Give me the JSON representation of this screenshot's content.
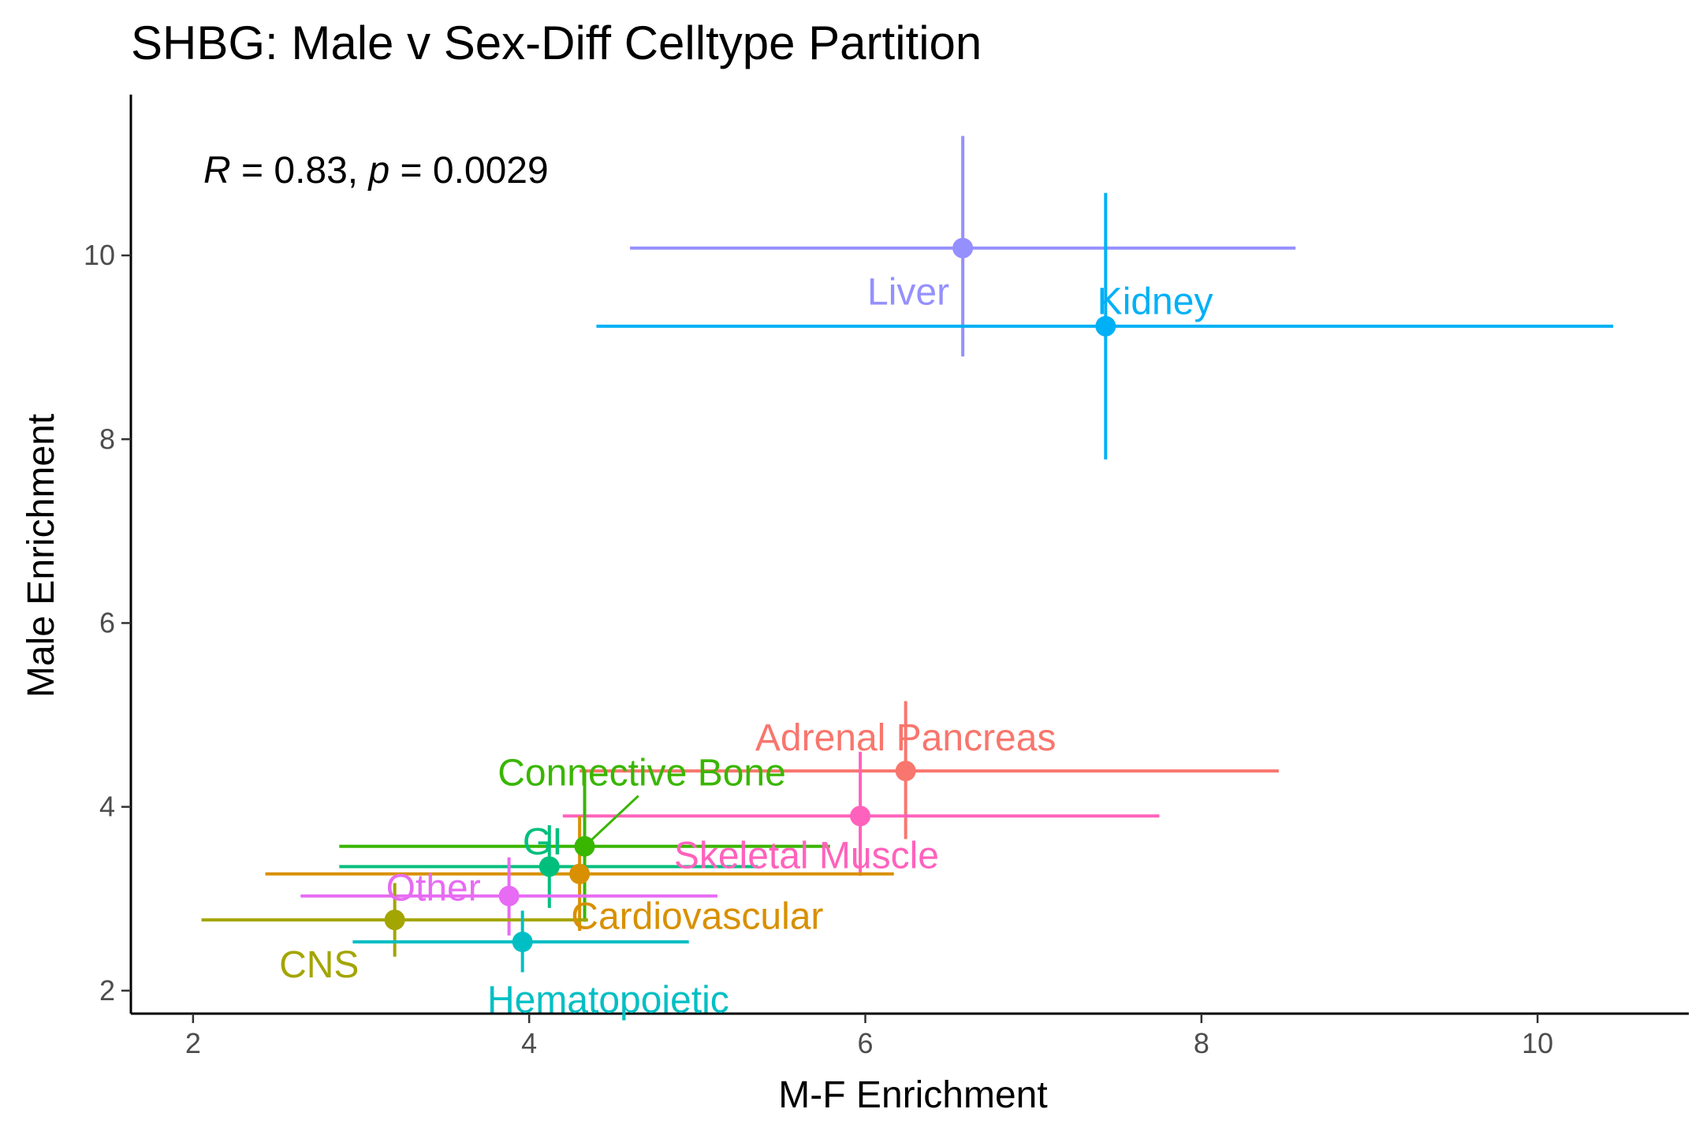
{
  "chart_data": {
    "type": "scatter",
    "title": "SHBG: Male v Sex-Diff Celltype Partition",
    "xlabel": "M-F Enrichment",
    "ylabel": "Male Enrichment",
    "xlim": [
      1.63,
      10.9
    ],
    "ylim": [
      1.75,
      11.75
    ],
    "xticks": [
      2,
      4,
      6,
      8,
      10
    ],
    "yticks": [
      2,
      4,
      6,
      8,
      10
    ],
    "grid": false,
    "legend": "none",
    "annotation": {
      "r_symbol": "R",
      "r_text": " = 0.83, ",
      "p_symbol": "p",
      "p_text": " = 0.0029"
    },
    "points": [
      {
        "label": "Liver",
        "color": "#9590FF",
        "x": 6.58,
        "y": 10.08,
        "x_lo": 4.6,
        "x_hi": 8.56,
        "y_lo": 8.9,
        "y_hi": 11.3,
        "label_anchor": "end",
        "label_x": 6.5,
        "label_y": 9.6
      },
      {
        "label": "Kidney",
        "color": "#00B0F6",
        "x": 7.43,
        "y": 9.23,
        "x_lo": 4.4,
        "x_hi": 10.45,
        "y_lo": 7.78,
        "y_hi": 10.68,
        "label_anchor": "start",
        "label_x": 7.38,
        "label_y": 9.5
      },
      {
        "label": "Adrenal Pancreas",
        "color": "#F8766D",
        "x": 6.24,
        "y": 4.39,
        "x_lo": 4.3,
        "x_hi": 8.46,
        "y_lo": 3.65,
        "y_hi": 5.15,
        "label_anchor": "middle",
        "label_x": 6.24,
        "label_y": 4.75
      },
      {
        "label": "Skeletal Muscle",
        "color": "#FF62BC",
        "x": 5.97,
        "y": 3.9,
        "x_lo": 4.2,
        "x_hi": 7.75,
        "y_lo": 3.25,
        "y_hi": 4.6,
        "label_anchor": "middle",
        "label_x": 5.65,
        "label_y": 3.47
      },
      {
        "label": "Connective Bone",
        "color": "#39B600",
        "x": 4.33,
        "y": 3.57,
        "x_lo": 2.87,
        "x_hi": 5.79,
        "y_lo": 2.75,
        "y_hi": 4.4,
        "label_anchor": "middle",
        "label_x": 4.67,
        "label_y": 4.37
      },
      {
        "label": "GI",
        "color": "#00BF7D",
        "x": 4.12,
        "y": 3.35,
        "x_lo": 2.87,
        "x_hi": 5.36,
        "y_lo": 2.9,
        "y_hi": 3.8,
        "label_anchor": "middle",
        "label_x": 4.08,
        "label_y": 3.62
      },
      {
        "label": "Cardiovascular",
        "color": "#D89000",
        "x": 4.3,
        "y": 3.27,
        "x_lo": 2.43,
        "x_hi": 6.17,
        "y_lo": 2.65,
        "y_hi": 3.9,
        "label_anchor": "middle",
        "label_x": 5.0,
        "label_y": 2.81
      },
      {
        "label": "Other",
        "color": "#E76BF3",
        "x": 3.88,
        "y": 3.03,
        "x_lo": 2.64,
        "x_hi": 5.12,
        "y_lo": 2.6,
        "y_hi": 3.45,
        "label_anchor": "middle",
        "label_x": 3.43,
        "label_y": 3.12
      },
      {
        "label": "CNS",
        "color": "#A3A500",
        "x": 3.2,
        "y": 2.77,
        "x_lo": 2.05,
        "x_hi": 4.35,
        "y_lo": 2.37,
        "y_hi": 3.17,
        "label_anchor": "middle",
        "label_x": 2.75,
        "label_y": 2.28
      },
      {
        "label": "Hematopoietic",
        "color": "#00BFC4",
        "x": 3.96,
        "y": 2.53,
        "x_lo": 2.95,
        "x_hi": 4.95,
        "y_lo": 2.2,
        "y_hi": 2.87,
        "label_anchor": "middle",
        "label_x": 4.47,
        "label_y": 1.9
      }
    ]
  }
}
